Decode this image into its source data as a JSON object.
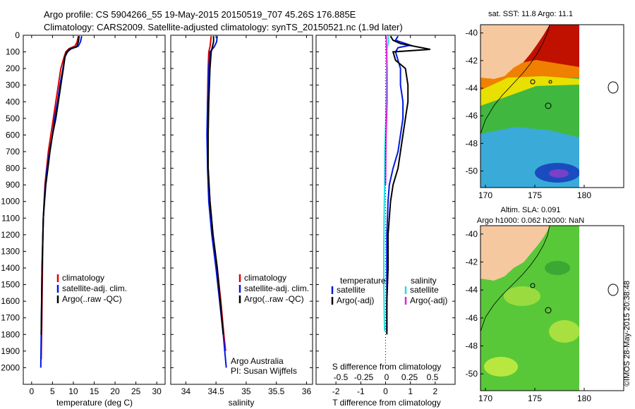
{
  "header": {
    "line1": "Argo profile: CS 5904266_55 19-May-2015 20150519_707 45.26S 176.885E",
    "line2": "Climatology: CARS2009. Satellite-adjusted climatology: synTS_20150521.nc (1.9d later)"
  },
  "colors": {
    "climatology": "#e00000",
    "satellite": "#0018e0",
    "argo": "#000000",
    "sat_salinity": "#20e0e0",
    "argo_salinity": "#e020e0",
    "land": "#f5c8a0"
  },
  "chart_data": [
    {
      "type": "line",
      "name": "temperature-profile",
      "xlabel": "temperature (deg C)",
      "ylabel": "",
      "xlim": [
        -2,
        32
      ],
      "ylim": [
        0,
        2100
      ],
      "y_inverted": true,
      "xticks": [
        0,
        5,
        10,
        15,
        20,
        25,
        30
      ],
      "yticks": [
        0,
        100,
        200,
        300,
        400,
        500,
        600,
        700,
        800,
        900,
        1000,
        1100,
        1200,
        1300,
        1400,
        1500,
        1600,
        1700,
        1800,
        1900,
        2000
      ],
      "legend": [
        "climatology",
        "satellite-adj. clim.",
        "Argo(..raw -QC)"
      ],
      "legend_placement": "lower-center",
      "series": [
        {
          "name": "climatology",
          "color": "#e00000",
          "points": [
            [
              11.2,
              5
            ],
            [
              10.9,
              40
            ],
            [
              10.4,
              65
            ],
            [
              9.0,
              80
            ],
            [
              8.2,
              100
            ],
            [
              7.8,
              130
            ],
            [
              7.0,
              200
            ],
            [
              6.4,
              300
            ],
            [
              5.8,
              400
            ],
            [
              5.2,
              500
            ],
            [
              4.6,
              600
            ],
            [
              4.0,
              700
            ],
            [
              3.6,
              800
            ],
            [
              3.2,
              900
            ],
            [
              3.0,
              1000
            ],
            [
              2.8,
              1100
            ],
            [
              2.7,
              1200
            ],
            [
              2.6,
              1400
            ],
            [
              2.5,
              1600
            ],
            [
              2.4,
              1800
            ],
            [
              2.3,
              1950
            ]
          ]
        },
        {
          "name": "satellite-adj. clim.",
          "color": "#0018e0",
          "points": [
            [
              12.0,
              5
            ],
            [
              11.7,
              40
            ],
            [
              11.2,
              65
            ],
            [
              9.5,
              80
            ],
            [
              8.6,
              100
            ],
            [
              8.0,
              130
            ],
            [
              7.5,
              200
            ],
            [
              6.8,
              300
            ],
            [
              6.2,
              400
            ],
            [
              5.5,
              500
            ],
            [
              5.0,
              600
            ],
            [
              4.3,
              700
            ],
            [
              3.7,
              800
            ],
            [
              3.3,
              900
            ],
            [
              3.0,
              1000
            ],
            [
              2.8,
              1100
            ],
            [
              2.7,
              1200
            ],
            [
              2.5,
              1400
            ],
            [
              2.4,
              1600
            ],
            [
              2.3,
              1800
            ],
            [
              2.2,
              2000
            ]
          ]
        },
        {
          "name": "Argo(..raw -QC)",
          "color": "#000000",
          "points": [
            [
              11.4,
              5
            ],
            [
              11.2,
              40
            ],
            [
              10.8,
              70
            ],
            [
              9.0,
              85
            ],
            [
              8.4,
              100
            ],
            [
              8.0,
              130
            ],
            [
              7.6,
              200
            ],
            [
              7.0,
              300
            ],
            [
              6.4,
              400
            ],
            [
              5.8,
              500
            ],
            [
              5.0,
              600
            ],
            [
              4.4,
              700
            ],
            [
              3.9,
              800
            ],
            [
              3.4,
              900
            ],
            [
              3.1,
              1000
            ],
            [
              2.8,
              1100
            ],
            [
              2.7,
              1200
            ],
            [
              2.5,
              1400
            ],
            [
              2.4,
              1600
            ],
            [
              2.3,
              1800
            ]
          ]
        }
      ]
    },
    {
      "type": "line",
      "name": "salinity-profile",
      "xlabel": "salinity",
      "ylabel": "",
      "xlim": [
        33.75,
        36.1
      ],
      "ylim": [
        0,
        2100
      ],
      "y_inverted": true,
      "xticks": [
        34,
        34.5,
        35,
        35.5,
        36
      ],
      "legend": [
        "climatology",
        "satellite-adj. clim.",
        "Argo(..raw -QC)"
      ],
      "legend_placement": "lower-center",
      "annotation": [
        "Argo Australia",
        "PI: Susan Wijffels"
      ],
      "series": [
        {
          "name": "climatology",
          "color": "#e00000",
          "points": [
            [
              34.42,
              5
            ],
            [
              34.41,
              40
            ],
            [
              34.4,
              70
            ],
            [
              34.38,
              100
            ],
            [
              34.37,
              200
            ],
            [
              34.36,
              400
            ],
            [
              34.36,
              600
            ],
            [
              34.37,
              800
            ],
            [
              34.4,
              1000
            ],
            [
              34.45,
              1200
            ],
            [
              34.52,
              1400
            ],
            [
              34.58,
              1600
            ],
            [
              34.63,
              1800
            ],
            [
              34.66,
              1900
            ]
          ]
        },
        {
          "name": "satellite-adj. clim.",
          "color": "#0018e0",
          "points": [
            [
              34.52,
              5
            ],
            [
              34.51,
              40
            ],
            [
              34.47,
              70
            ],
            [
              34.4,
              100
            ],
            [
              34.38,
              200
            ],
            [
              34.36,
              400
            ],
            [
              34.35,
              600
            ],
            [
              34.36,
              800
            ],
            [
              34.38,
              1000
            ],
            [
              34.43,
              1200
            ],
            [
              34.5,
              1400
            ],
            [
              34.56,
              1600
            ],
            [
              34.62,
              1800
            ],
            [
              34.67,
              2000
            ]
          ]
        },
        {
          "name": "Argo(..raw -QC)",
          "color": "#000000",
          "points": [
            [
              34.46,
              5
            ],
            [
              34.46,
              40
            ],
            [
              34.44,
              70
            ],
            [
              34.42,
              100
            ],
            [
              34.4,
              200
            ],
            [
              34.38,
              400
            ],
            [
              34.37,
              600
            ],
            [
              34.37,
              800
            ],
            [
              34.4,
              1000
            ],
            [
              34.45,
              1200
            ],
            [
              34.52,
              1400
            ],
            [
              34.57,
              1600
            ],
            [
              34.62,
              1800
            ]
          ]
        }
      ]
    },
    {
      "type": "line",
      "name": "difference-profile",
      "xlabel": "T difference from climatology",
      "xlabel_top": "S difference from climatology",
      "xlim": [
        -2.8,
        2.8
      ],
      "ylim": [
        0,
        2100
      ],
      "y_inverted": true,
      "xticks": [
        -2,
        -1,
        0,
        1,
        2
      ],
      "s_xticks": [
        "-0.5",
        "-0.25",
        "0",
        "0.25",
        "0.5"
      ],
      "legend_titles": [
        "temperature",
        "salinity"
      ],
      "legend": [
        "satellite",
        "Argo(-adj)",
        "satellite",
        "Argo(-adj)"
      ],
      "series": [
        {
          "name": "T satellite",
          "color": "#0018e0",
          "points": [
            [
              0.5,
              5
            ],
            [
              0.4,
              30
            ],
            [
              1.0,
              60
            ],
            [
              0.5,
              75
            ],
            [
              0.4,
              100
            ],
            [
              0.5,
              150
            ],
            [
              0.6,
              200
            ],
            [
              0.6,
              300
            ],
            [
              0.7,
              400
            ],
            [
              0.7,
              500
            ],
            [
              0.6,
              600
            ],
            [
              0.5,
              700
            ],
            [
              0.3,
              800
            ],
            [
              0.15,
              900
            ],
            [
              0.1,
              1000
            ],
            [
              0.05,
              1200
            ],
            [
              0.05,
              1400
            ],
            [
              0.05,
              1600
            ],
            [
              0.05,
              1780
            ]
          ]
        },
        {
          "name": "T Argo(-adj)",
          "color": "#000000",
          "points": [
            [
              0.2,
              5
            ],
            [
              0.3,
              30
            ],
            [
              0.6,
              50
            ],
            [
              1.8,
              85
            ],
            [
              0.3,
              100
            ],
            [
              0.4,
              150
            ],
            [
              0.8,
              200
            ],
            [
              0.9,
              300
            ],
            [
              0.9,
              400
            ],
            [
              0.8,
              500
            ],
            [
              0.7,
              600
            ],
            [
              0.6,
              700
            ],
            [
              0.5,
              800
            ],
            [
              0.3,
              900
            ],
            [
              0.2,
              1000
            ],
            [
              0.1,
              1200
            ],
            [
              0.1,
              1400
            ],
            [
              0.05,
              1600
            ],
            [
              0.05,
              1800
            ]
          ]
        },
        {
          "name": "S satellite",
          "color": "#20e0e0",
          "points": [
            [
              0.1,
              5
            ],
            [
              0.12,
              40
            ],
            [
              0.05,
              80
            ],
            [
              0.05,
              150
            ],
            [
              0.04,
              300
            ],
            [
              0.01,
              500
            ],
            [
              -0.03,
              700
            ],
            [
              -0.04,
              900
            ],
            [
              -0.06,
              1100
            ],
            [
              -0.07,
              1300
            ],
            [
              -0.07,
              1500
            ],
            [
              -0.05,
              1700
            ],
            [
              -0.04,
              1780
            ]
          ]
        },
        {
          "name": "S Argo(-adj)",
          "color": "#e020e0",
          "points": [
            [
              0.02,
              5
            ],
            [
              0.03,
              30
            ],
            [
              0.03,
              60
            ],
            [
              0.04,
              100
            ],
            [
              0.06,
              200
            ],
            [
              0.06,
              400
            ],
            [
              0.02,
              600
            ],
            [
              0.01,
              700
            ],
            [
              0.0,
              900
            ]
          ]
        }
      ]
    },
    {
      "type": "heatmap",
      "name": "sst-map",
      "title": "sat. SST: 11.8  Argo: 11.1",
      "xlim": [
        169.5,
        184
      ],
      "ylim": [
        -51.2,
        -39.4
      ],
      "xticks": [
        "170",
        "175",
        "180"
      ],
      "yticks": [
        "-40",
        "-42",
        "-44",
        "-46",
        "-48",
        "-50"
      ],
      "profile_marker": [
        176.885,
        -45.26
      ]
    },
    {
      "type": "heatmap",
      "name": "sla-map",
      "title": "Altim. SLA: 0.091",
      "subtitle": "Argo h1000: 0.062 h2000: NaN",
      "xlim": [
        169.5,
        184
      ],
      "ylim": [
        -51.2,
        -39.4
      ],
      "xticks": [
        "170",
        "175",
        "180"
      ],
      "yticks": [
        "-40",
        "-42",
        "-44",
        "-46",
        "-48",
        "-50"
      ],
      "profile_marker": [
        176.885,
        -45.26
      ]
    }
  ],
  "footer": {
    "imos_stamp": "©IMOS 28-May-2015 20:38:48"
  }
}
